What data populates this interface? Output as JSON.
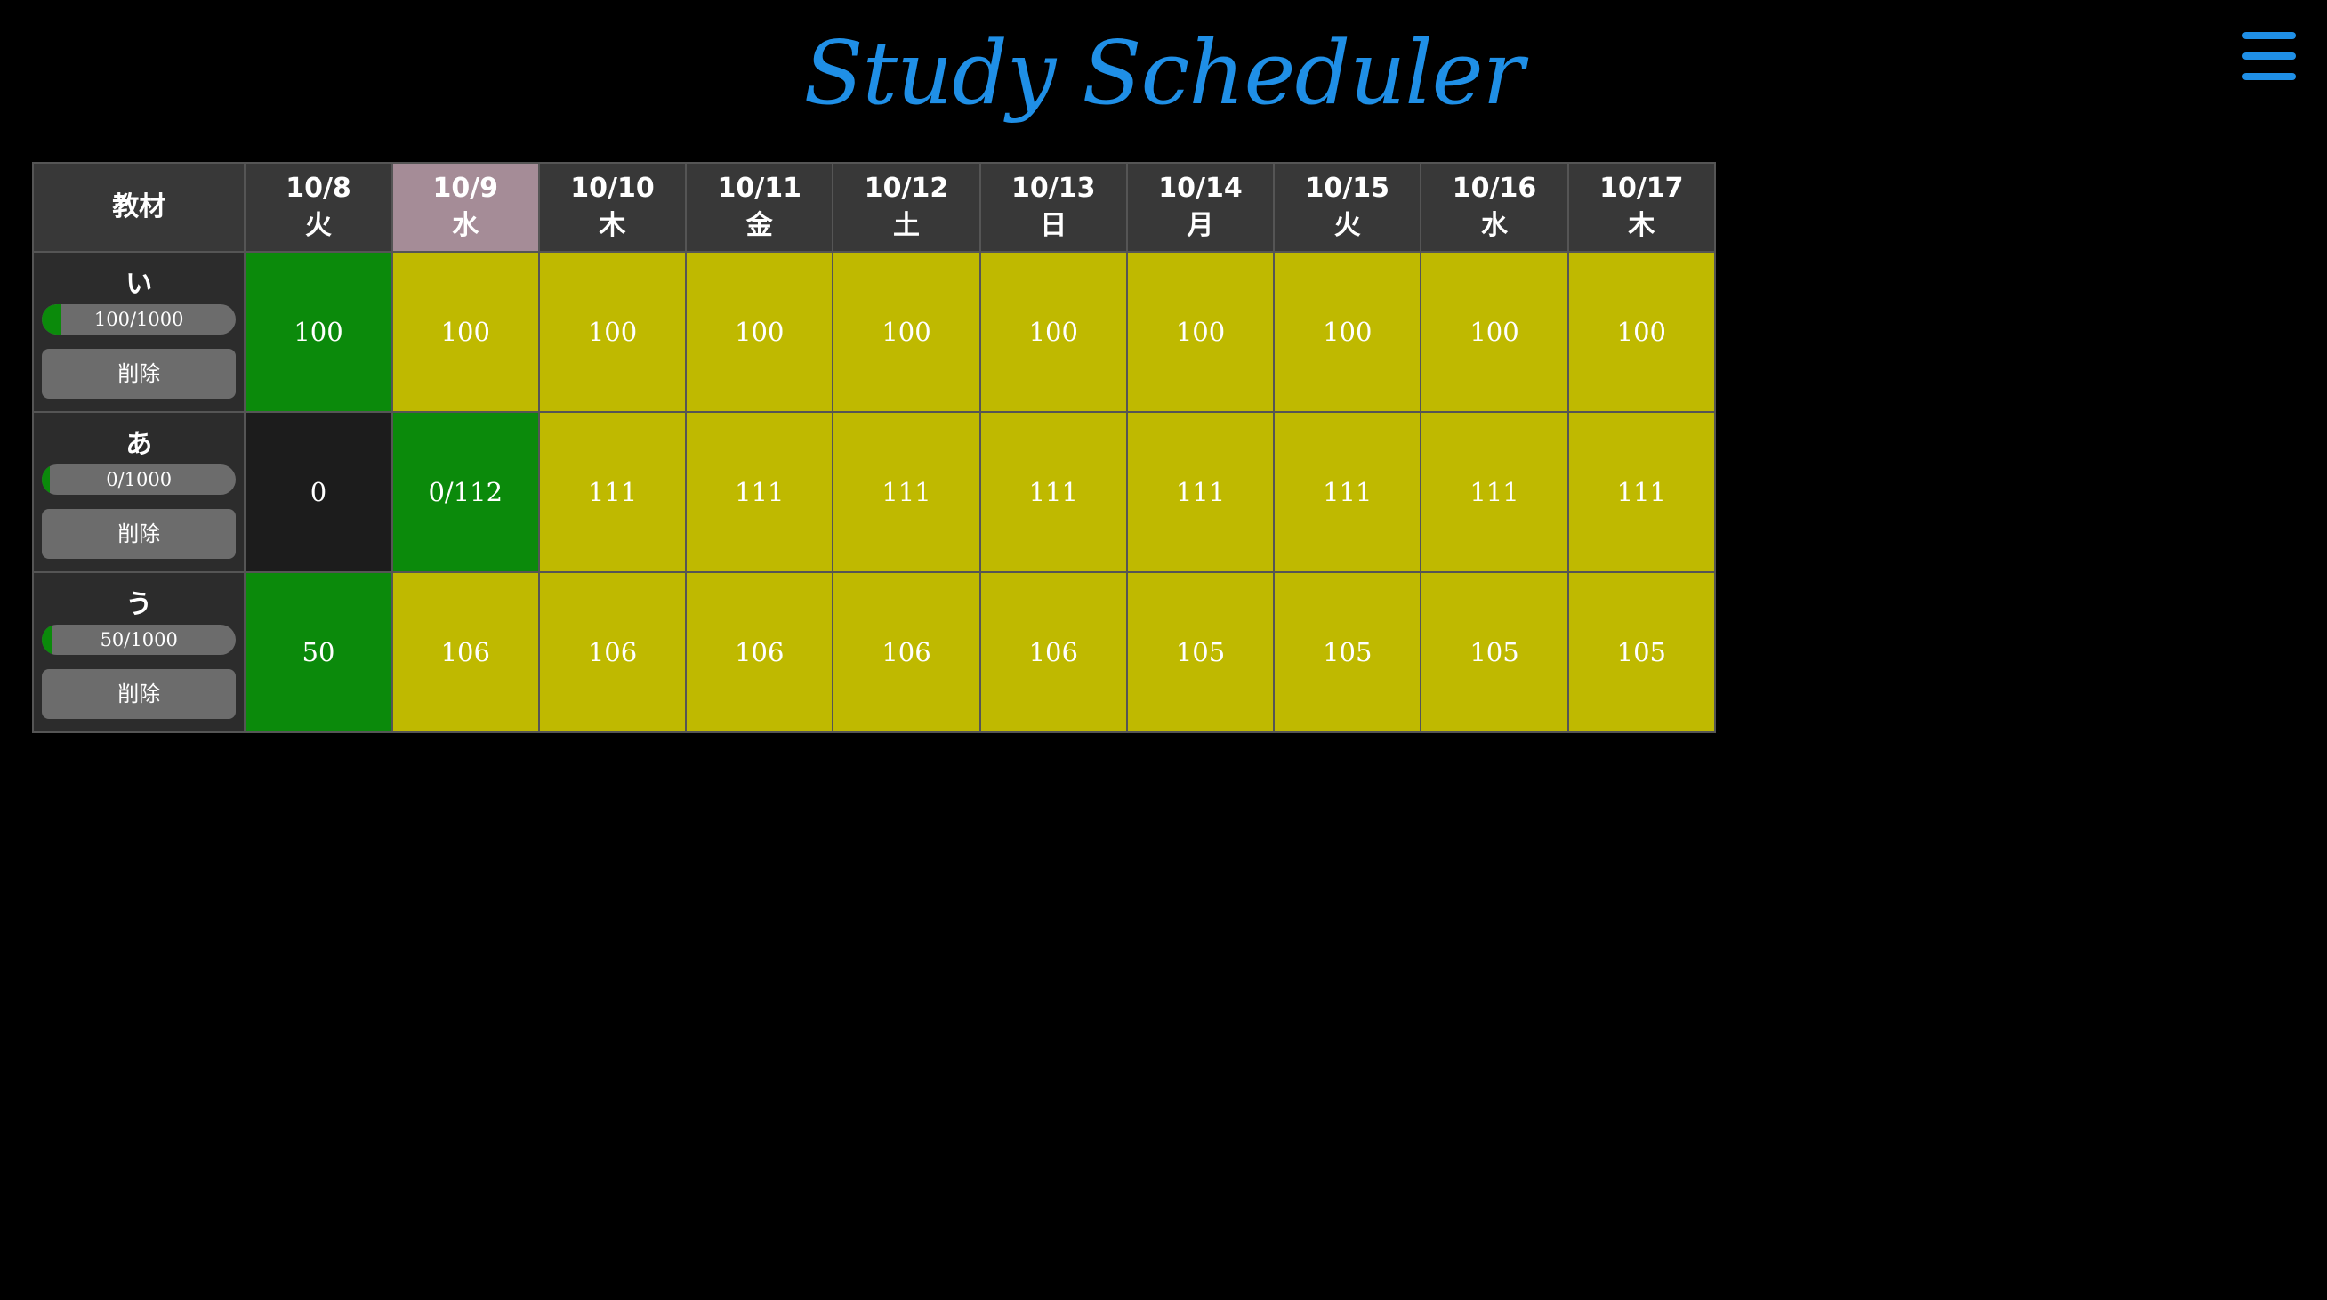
{
  "app": {
    "title": "Study Scheduler",
    "menu_icon": "hamburger-menu-icon"
  },
  "colors": {
    "title_blue": "#1f8fe6",
    "header_bg": "#383838",
    "today_header_bg": "#a58c97",
    "done_green": "#0b8a0b",
    "planned_yellow": "#bfb900",
    "past_dark": "#1c1c1c"
  },
  "table": {
    "material_header": "教材",
    "dates": [
      {
        "date": "10/8",
        "weekday": "火",
        "today": false
      },
      {
        "date": "10/9",
        "weekday": "水",
        "today": true
      },
      {
        "date": "10/10",
        "weekday": "木",
        "today": false
      },
      {
        "date": "10/11",
        "weekday": "金",
        "today": false
      },
      {
        "date": "10/12",
        "weekday": "土",
        "today": false
      },
      {
        "date": "10/13",
        "weekday": "日",
        "today": false
      },
      {
        "date": "10/14",
        "weekday": "月",
        "today": false
      },
      {
        "date": "10/15",
        "weekday": "火",
        "today": false
      },
      {
        "date": "10/16",
        "weekday": "水",
        "today": false
      },
      {
        "date": "10/17",
        "weekday": "木",
        "today": false
      }
    ],
    "rows": [
      {
        "name": "い",
        "progress_text": "100/1000",
        "progress_fraction": 0.1,
        "delete_label": "削除",
        "cells": [
          {
            "value": "100",
            "state": "done"
          },
          {
            "value": "100",
            "state": "planned"
          },
          {
            "value": "100",
            "state": "planned"
          },
          {
            "value": "100",
            "state": "planned"
          },
          {
            "value": "100",
            "state": "planned"
          },
          {
            "value": "100",
            "state": "planned"
          },
          {
            "value": "100",
            "state": "planned"
          },
          {
            "value": "100",
            "state": "planned"
          },
          {
            "value": "100",
            "state": "planned"
          },
          {
            "value": "100",
            "state": "planned"
          }
        ]
      },
      {
        "name": "あ",
        "progress_text": "0/1000",
        "progress_fraction": 0.0,
        "delete_label": "削除",
        "cells": [
          {
            "value": "0",
            "state": "past"
          },
          {
            "value": "0/112",
            "state": "done"
          },
          {
            "value": "111",
            "state": "planned"
          },
          {
            "value": "111",
            "state": "planned"
          },
          {
            "value": "111",
            "state": "planned"
          },
          {
            "value": "111",
            "state": "planned"
          },
          {
            "value": "111",
            "state": "planned"
          },
          {
            "value": "111",
            "state": "planned"
          },
          {
            "value": "111",
            "state": "planned"
          },
          {
            "value": "111",
            "state": "planned"
          }
        ]
      },
      {
        "name": "う",
        "progress_text": "50/1000",
        "progress_fraction": 0.05,
        "delete_label": "削除",
        "cells": [
          {
            "value": "50",
            "state": "done"
          },
          {
            "value": "106",
            "state": "planned"
          },
          {
            "value": "106",
            "state": "planned"
          },
          {
            "value": "106",
            "state": "planned"
          },
          {
            "value": "106",
            "state": "planned"
          },
          {
            "value": "106",
            "state": "planned"
          },
          {
            "value": "105",
            "state": "planned"
          },
          {
            "value": "105",
            "state": "planned"
          },
          {
            "value": "105",
            "state": "planned"
          },
          {
            "value": "105",
            "state": "planned"
          }
        ]
      }
    ]
  }
}
